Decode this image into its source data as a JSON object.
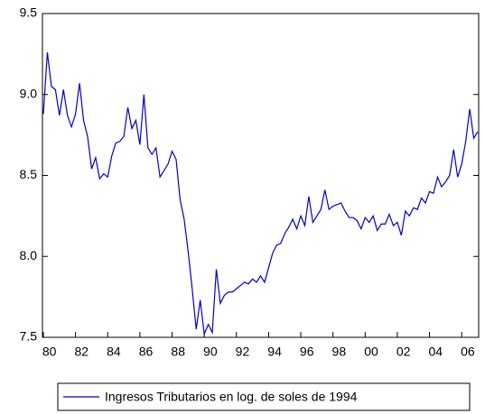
{
  "chart_data": {
    "type": "line",
    "categories": [
      "80",
      null,
      null,
      null,
      null,
      null,
      null,
      null,
      "82",
      null,
      null,
      null,
      null,
      null,
      null,
      null,
      "84",
      null,
      null,
      null,
      null,
      null,
      null,
      null,
      "86",
      null,
      null,
      null,
      null,
      null,
      null,
      null,
      "88",
      null,
      null,
      null,
      null,
      null,
      null,
      null,
      "90",
      null,
      null,
      null,
      null,
      null,
      null,
      null,
      "92",
      null,
      null,
      null,
      null,
      null,
      null,
      null,
      "94",
      null,
      null,
      null,
      null,
      null,
      null,
      null,
      "96",
      null,
      null,
      null,
      null,
      null,
      null,
      null,
      "98",
      null,
      null,
      null,
      null,
      null,
      null,
      null,
      "00",
      null,
      null,
      null,
      null,
      null,
      null,
      null,
      "02",
      null,
      null,
      null,
      null,
      null,
      null,
      null,
      "04",
      null,
      null,
      null,
      null,
      null,
      null,
      null,
      "06",
      null,
      null,
      null,
      null
    ],
    "series": [
      {
        "name": "Ingresos Tributarios en log. de soles de 1994",
        "color": "#0000cc",
        "values": [
          8.88,
          9.26,
          9.05,
          9.03,
          8.87,
          9.03,
          8.87,
          8.8,
          8.88,
          9.07,
          8.84,
          8.74,
          8.54,
          8.61,
          8.48,
          8.51,
          8.49,
          8.62,
          8.7,
          8.71,
          8.74,
          8.92,
          8.79,
          8.84,
          8.69,
          9.0,
          8.67,
          8.63,
          8.67,
          8.49,
          8.53,
          8.57,
          8.65,
          8.6,
          8.35,
          8.23,
          8.03,
          7.8,
          7.55,
          7.73,
          7.52,
          7.58,
          7.53,
          7.92,
          7.71,
          7.76,
          7.78,
          7.78,
          7.8,
          7.82,
          7.84,
          7.83,
          7.86,
          7.84,
          7.88,
          7.84,
          7.93,
          8.02,
          8.07,
          8.08,
          8.14,
          8.18,
          8.23,
          8.17,
          8.25,
          8.19,
          8.37,
          8.21,
          8.25,
          8.29,
          8.41,
          8.29,
          8.31,
          8.32,
          8.33,
          8.28,
          8.24,
          8.24,
          8.22,
          8.17,
          8.24,
          8.21,
          8.25,
          8.16,
          8.2,
          8.2,
          8.26,
          8.19,
          8.21,
          8.13,
          8.28,
          8.25,
          8.3,
          8.29,
          8.36,
          8.33,
          8.4,
          8.39,
          8.49,
          8.43,
          8.46,
          8.5,
          8.66,
          8.49,
          8.57,
          8.71,
          8.91,
          8.73,
          8.77
        ]
      }
    ],
    "ylim": [
      7.5,
      9.5
    ],
    "yticks": [
      7.5,
      {
        "value": 8,
        "label": "8.0"
      },
      8.5,
      {
        "value": 9,
        "label": "9.0"
      },
      9.5
    ],
    "legend": "bottom"
  }
}
